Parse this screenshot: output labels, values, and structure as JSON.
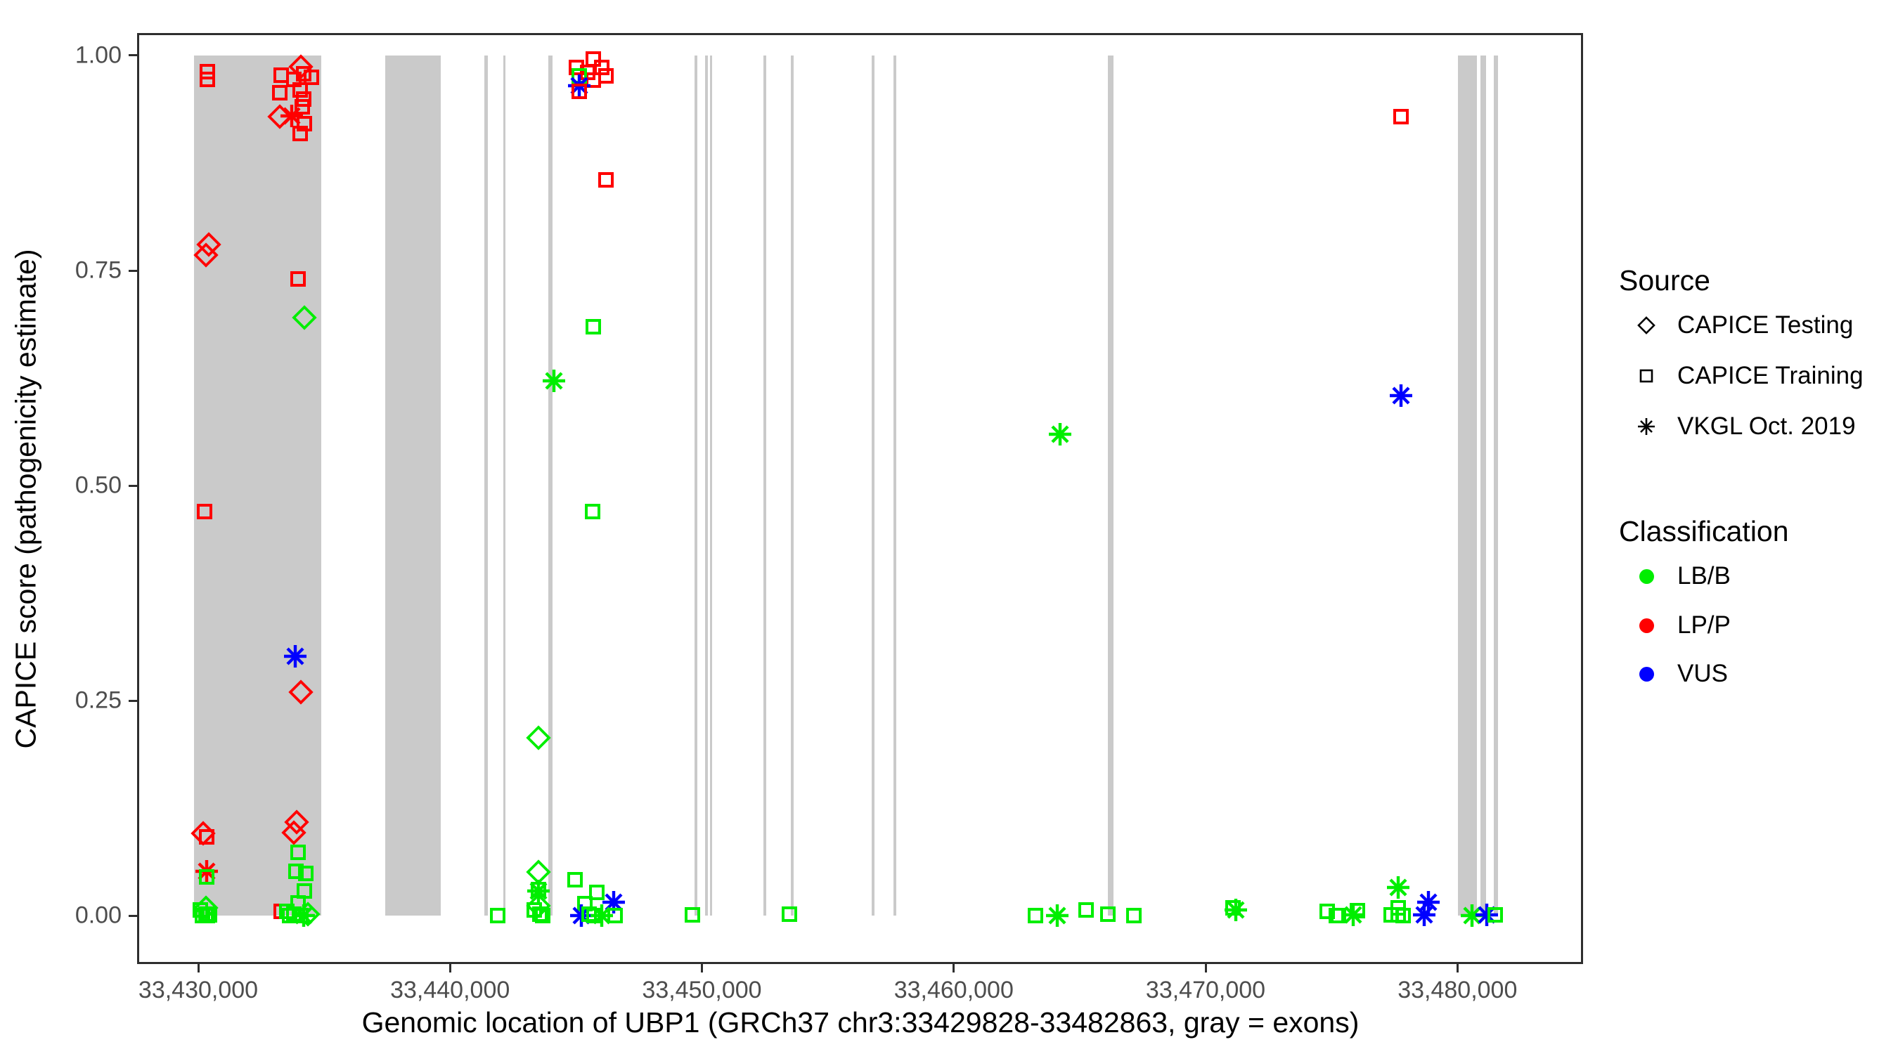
{
  "chart_data": {
    "type": "scatter",
    "title": "",
    "xlabel": "Genomic location of UBP1 (GRCh37 chr3:33429828-33482863, gray = exons)",
    "ylabel": "CAPICE score (pathogenicity estimate)",
    "xlim": [
      33427572,
      33484989
    ],
    "ylim": [
      -0.056,
      1.026
    ],
    "x_ticks": [
      33430000,
      33440000,
      33450000,
      33460000,
      33470000,
      33480000
    ],
    "x_tick_labels": [
      "33,430,000",
      "33,440,000",
      "33,450,000",
      "33,460,000",
      "33,470,000",
      "33,480,000"
    ],
    "y_ticks": [
      0.0,
      0.25,
      0.5,
      0.75,
      1.0
    ],
    "y_tick_labels": [
      "0.00",
      "0.25",
      "0.50",
      "0.75",
      "1.00"
    ],
    "grid": "off",
    "legend_position": "right",
    "exon_color": "#cacaca",
    "exon_score_span": [
      0,
      1
    ],
    "exons": [
      [
        33429828,
        33434890
      ],
      [
        33437430,
        33439630
      ],
      [
        33441350,
        33441490
      ],
      [
        33442100,
        33442190
      ],
      [
        33443900,
        33444070
      ],
      [
        33449710,
        33449820
      ],
      [
        33450130,
        33450240
      ],
      [
        33450330,
        33450420
      ],
      [
        33452440,
        33452550
      ],
      [
        33453530,
        33453640
      ],
      [
        33456740,
        33456850
      ],
      [
        33457610,
        33457720
      ],
      [
        33466130,
        33466330
      ],
      [
        33480010,
        33480790
      ],
      [
        33480900,
        33481130
      ],
      [
        33481440,
        33481600
      ]
    ],
    "source_shapes": {
      "d": "CAPICE Testing",
      "s": "CAPICE Training",
      "a": "VKGL Oct. 2019"
    },
    "classification_colors": {
      "LB/B": "#00ee00",
      "LP/P": "#ff0000",
      "VUS": "#0000ff"
    },
    "points_format": [
      "genomic_position",
      "capice_score",
      "source_code",
      "classification"
    ],
    "points": [
      [
        33430360,
        0.981,
        "s",
        "LP/P"
      ],
      [
        33430360,
        0.972,
        "s",
        "LP/P"
      ],
      [
        33430420,
        0.78,
        "d",
        "LP/P"
      ],
      [
        33430310,
        0.768,
        "d",
        "LP/P"
      ],
      [
        33430250,
        0.47,
        "s",
        "LP/P"
      ],
      [
        33430200,
        0.096,
        "d",
        "LP/P"
      ],
      [
        33430340,
        0.092,
        "s",
        "LP/P"
      ],
      [
        33430340,
        0.052,
        "a",
        "LP/P"
      ],
      [
        33430340,
        0.045,
        "s",
        "LB/B"
      ],
      [
        33430080,
        0.007,
        "s",
        "LB/B"
      ],
      [
        33430310,
        0.009,
        "d",
        "LB/B"
      ],
      [
        33430310,
        0.002,
        "s",
        "LB/B"
      ],
      [
        33430450,
        0.001,
        "s",
        "LB/B"
      ],
      [
        33430180,
        0.0,
        "s",
        "LB/B"
      ],
      [
        33430360,
        0.0,
        "s",
        "LB/B"
      ],
      [
        33434080,
        0.987,
        "d",
        "LP/P"
      ],
      [
        33433290,
        0.977,
        "s",
        "LP/P"
      ],
      [
        33434190,
        0.979,
        "s",
        "LP/P"
      ],
      [
        33433800,
        0.972,
        "s",
        "LP/P"
      ],
      [
        33434490,
        0.975,
        "s",
        "LP/P"
      ],
      [
        33433240,
        0.957,
        "s",
        "LP/P"
      ],
      [
        33434050,
        0.96,
        "s",
        "LP/P"
      ],
      [
        33434190,
        0.949,
        "s",
        "LP/P"
      ],
      [
        33434130,
        0.94,
        "s",
        "LP/P"
      ],
      [
        33433240,
        0.929,
        "d",
        "LP/P"
      ],
      [
        33433710,
        0.93,
        "a",
        "LP/P"
      ],
      [
        33434210,
        0.921,
        "s",
        "LP/P"
      ],
      [
        33434050,
        0.909,
        "s",
        "LP/P"
      ],
      [
        33433960,
        0.74,
        "s",
        "LP/P"
      ],
      [
        33434210,
        0.695,
        "d",
        "LB/B"
      ],
      [
        33433850,
        0.302,
        "a",
        "VUS"
      ],
      [
        33434080,
        0.26,
        "d",
        "LP/P"
      ],
      [
        33433910,
        0.109,
        "d",
        "LP/P"
      ],
      [
        33433800,
        0.097,
        "d",
        "LP/P"
      ],
      [
        33433960,
        0.074,
        "s",
        "LB/B"
      ],
      [
        33433880,
        0.052,
        "s",
        "LB/B"
      ],
      [
        33434270,
        0.049,
        "s",
        "LB/B"
      ],
      [
        33434210,
        0.029,
        "s",
        "LB/B"
      ],
      [
        33433960,
        0.015,
        "s",
        "LB/B"
      ],
      [
        33433290,
        0.005,
        "s",
        "LP/P"
      ],
      [
        33433520,
        0.005,
        "s",
        "LB/B"
      ],
      [
        33433800,
        0.002,
        "s",
        "LB/B"
      ],
      [
        33434080,
        0.0,
        "s",
        "LB/B"
      ],
      [
        33434350,
        0.002,
        "d",
        "LB/B"
      ],
      [
        33434190,
        0.0,
        "a",
        "LB/B"
      ],
      [
        33433630,
        0.0,
        "s",
        "LB/B"
      ],
      [
        33445690,
        0.996,
        "s",
        "LP/P"
      ],
      [
        33445020,
        0.986,
        "s",
        "LP/P"
      ],
      [
        33446020,
        0.986,
        "s",
        "LP/P"
      ],
      [
        33445460,
        0.98,
        "s",
        "LP/P"
      ],
      [
        33446190,
        0.976,
        "s",
        "LP/P"
      ],
      [
        33445690,
        0.971,
        "s",
        "LP/P"
      ],
      [
        33445130,
        0.976,
        "s",
        "LB/B"
      ],
      [
        33445130,
        0.965,
        "a",
        "VUS"
      ],
      [
        33445130,
        0.958,
        "s",
        "LP/P"
      ],
      [
        33446190,
        0.855,
        "s",
        "LP/P"
      ],
      [
        33444120,
        0.622,
        "a",
        "LB/B"
      ],
      [
        33445690,
        0.685,
        "s",
        "LB/B"
      ],
      [
        33445660,
        0.47,
        "s",
        "LB/B"
      ],
      [
        33443510,
        0.207,
        "d",
        "LB/B"
      ],
      [
        33441890,
        0.0,
        "s",
        "LB/B"
      ],
      [
        33443510,
        0.051,
        "d",
        "LB/B"
      ],
      [
        33443510,
        0.031,
        "s",
        "LB/B"
      ],
      [
        33443510,
        0.029,
        "a",
        "LB/B"
      ],
      [
        33443510,
        0.012,
        "d",
        "LB/B"
      ],
      [
        33443340,
        0.007,
        "s",
        "LB/B"
      ],
      [
        33443560,
        0.002,
        "s",
        "LB/B"
      ],
      [
        33443680,
        0.0,
        "s",
        "LB/B"
      ],
      [
        33444960,
        0.042,
        "s",
        "LB/B"
      ],
      [
        33445350,
        0.014,
        "s",
        "LB/B"
      ],
      [
        33445820,
        0.027,
        "s",
        "LB/B"
      ],
      [
        33445210,
        0.0,
        "a",
        "VUS"
      ],
      [
        33446490,
        0.016,
        "a",
        "VUS"
      ],
      [
        33446020,
        0.0,
        "a",
        "LB/B"
      ],
      [
        33446550,
        0.0,
        "s",
        "LB/B"
      ],
      [
        33445520,
        0.002,
        "s",
        "LB/B"
      ],
      [
        33445710,
        0.0,
        "s",
        "LB/B"
      ],
      [
        33449620,
        0.001,
        "s",
        "LB/B"
      ],
      [
        33453470,
        0.002,
        "s",
        "LB/B"
      ],
      [
        33463230,
        0.0,
        "s",
        "LB/B"
      ],
      [
        33464120,
        0.0,
        "a",
        "LB/B"
      ],
      [
        33465240,
        0.007,
        "s",
        "LB/B"
      ],
      [
        33466130,
        0.002,
        "s",
        "LB/B"
      ],
      [
        33467140,
        0.0,
        "s",
        "LB/B"
      ],
      [
        33464210,
        0.56,
        "a",
        "LB/B"
      ],
      [
        33471080,
        0.009,
        "s",
        "LB/B"
      ],
      [
        33471190,
        0.007,
        "a",
        "LB/B"
      ],
      [
        33474840,
        0.005,
        "s",
        "LB/B"
      ],
      [
        33475180,
        0.0,
        "s",
        "LB/B"
      ],
      [
        33475280,
        0.0,
        "s",
        "LB/B"
      ],
      [
        33475850,
        0.001,
        "a",
        "LB/B"
      ],
      [
        33476040,
        0.006,
        "s",
        "LB/B"
      ],
      [
        33477660,
        0.033,
        "a",
        "LB/B"
      ],
      [
        33477660,
        0.009,
        "s",
        "LB/B"
      ],
      [
        33477660,
        0.001,
        "s",
        "LB/B"
      ],
      [
        33477380,
        0.001,
        "s",
        "LB/B"
      ],
      [
        33477830,
        0.0,
        "s",
        "LB/B"
      ],
      [
        33478860,
        0.016,
        "a",
        "VUS"
      ],
      [
        33478670,
        0.001,
        "a",
        "VUS"
      ],
      [
        33480590,
        0.0,
        "a",
        "LB/B"
      ],
      [
        33481150,
        0.001,
        "a",
        "VUS"
      ],
      [
        33481490,
        0.001,
        "s",
        "LB/B"
      ],
      [
        33477750,
        0.929,
        "s",
        "LP/P"
      ],
      [
        33477750,
        0.605,
        "a",
        "VUS"
      ]
    ]
  },
  "legend": {
    "source": {
      "title": "Source",
      "items": [
        {
          "label": "CAPICE Testing",
          "shape": "d"
        },
        {
          "label": "CAPICE Training",
          "shape": "s"
        },
        {
          "label": "VKGL Oct. 2019",
          "shape": "a"
        }
      ]
    },
    "classification": {
      "title": "Classification",
      "items": [
        {
          "label": "LB/B",
          "color": "#00ee00"
        },
        {
          "label": "LP/P",
          "color": "#ff0000"
        },
        {
          "label": "VUS",
          "color": "#0000ff"
        }
      ]
    }
  }
}
